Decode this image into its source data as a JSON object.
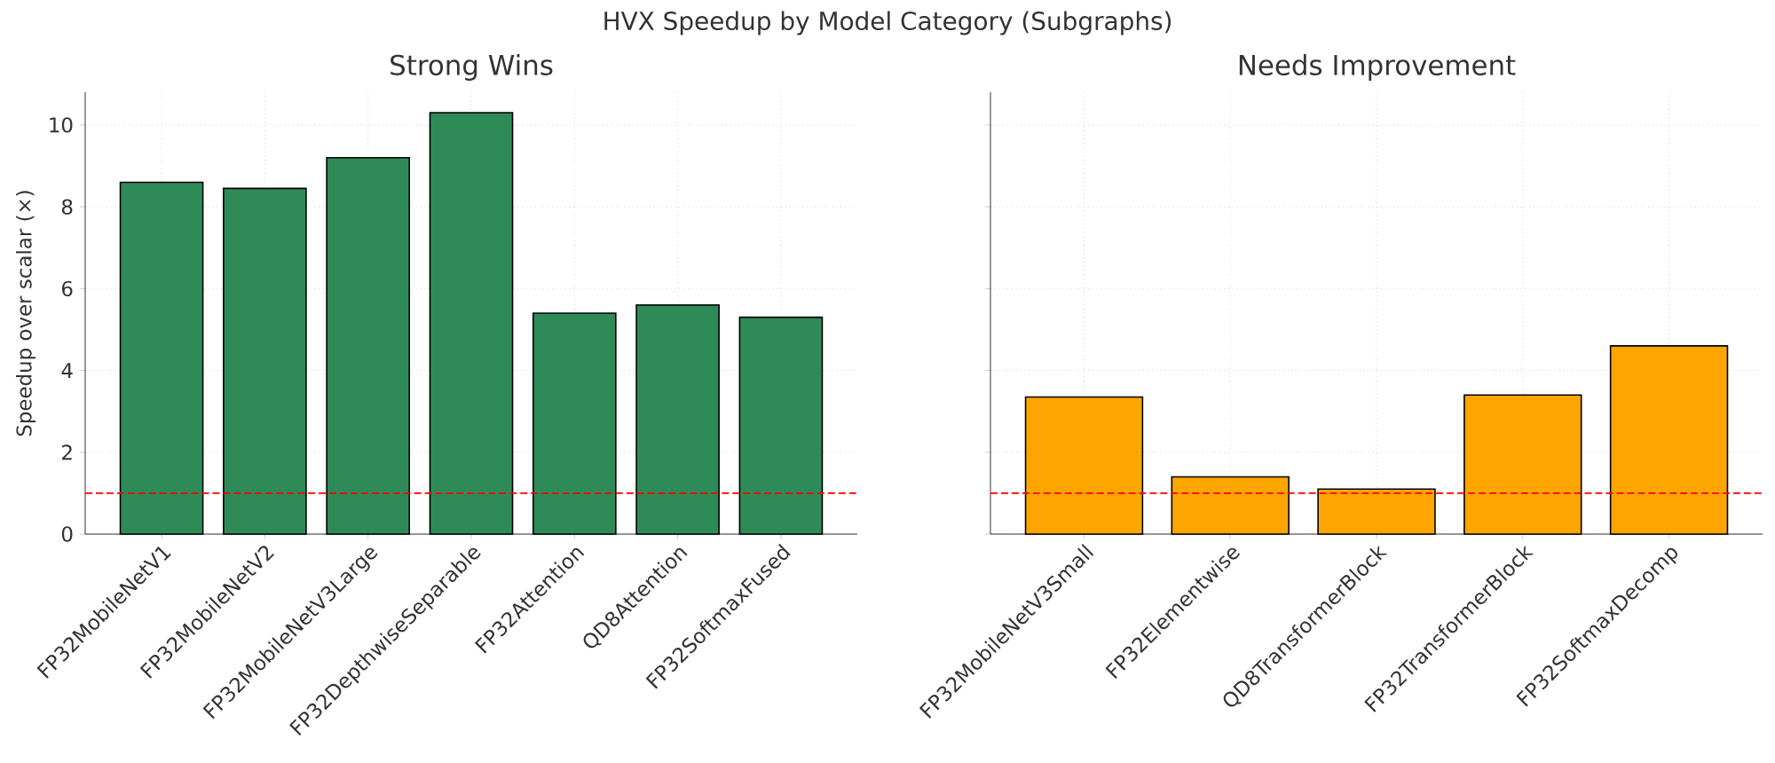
{
  "chart_data": [
    {
      "type": "bar",
      "title": "HVX Speedup by Model Category (Subgraphs)",
      "subtitle": "Strong Wins",
      "ylabel": "Speedup over scalar (×)",
      "categories": [
        "FP32MobileNetV1",
        "FP32MobileNetV2",
        "FP32MobileNetV3Large",
        "FP32DepthwiseSeparable",
        "FP32Attention",
        "QD8Attention",
        "FP32SoftmaxFused"
      ],
      "values": [
        8.6,
        8.45,
        9.2,
        10.3,
        5.4,
        5.6,
        5.3
      ],
      "color": "#2e8b57",
      "ylim": [
        0,
        10.8
      ],
      "yticks": [
        0,
        2,
        4,
        6,
        8,
        10
      ],
      "grid": true,
      "ref_lines": [
        {
          "axis": "y",
          "value": 1,
          "color": "#ff0000",
          "line_style": "dashed"
        }
      ]
    },
    {
      "type": "bar",
      "subtitle": "Needs Improvement",
      "categories": [
        "FP32MobileNetV3Small",
        "FP32Elementwise",
        "QD8TransformerBlock",
        "FP32TransformerBlock",
        "FP32SoftmaxDecomp"
      ],
      "values": [
        3.35,
        1.4,
        1.1,
        3.4,
        4.6
      ],
      "color": "#ffa500",
      "ylim": [
        0,
        10.8
      ],
      "yticks": [
        0,
        2,
        4,
        6,
        8,
        10
      ],
      "grid": true,
      "tick_labels": "x",
      "ref_lines": [
        {
          "axis": "y",
          "value": 1,
          "color": "#ff0000",
          "line_style": "dashed"
        }
      ]
    }
  ]
}
